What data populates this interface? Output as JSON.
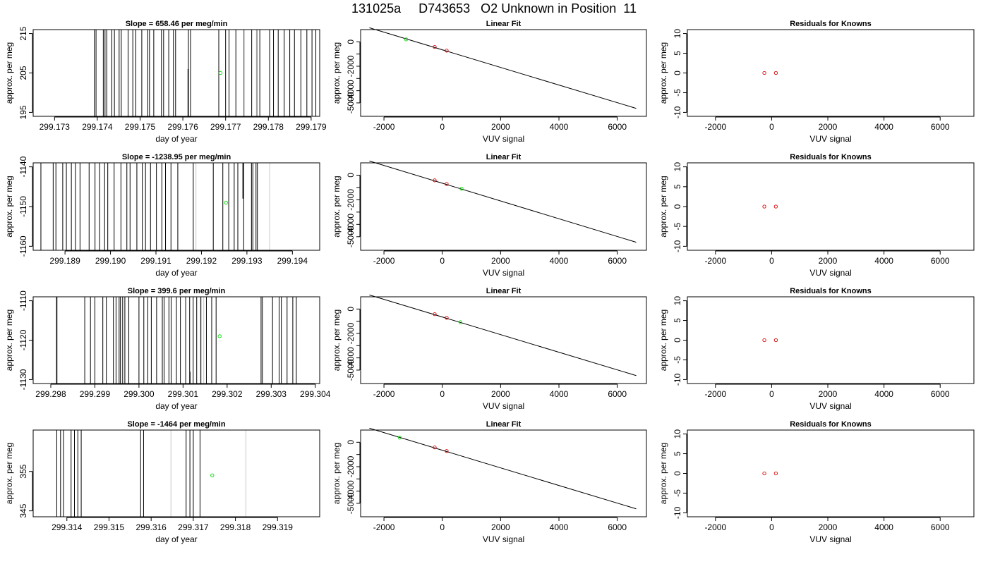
{
  "figure": {
    "title": "131025a     D743653   O2 Unknown in Position  11"
  },
  "colors": {
    "axis": "#000000",
    "trace": "#000000",
    "trace_faint": "#c8c8c8",
    "unknown_point": "#00dd00",
    "known_point": "#dd0000"
  },
  "chart_data": [
    {
      "panel": "row1-time",
      "type": "line",
      "title": "Slope =  658.46  per meg/min",
      "xlabel": "day of year",
      "ylabel": "approx. per meg",
      "xlim": [
        299.1725,
        299.1792
      ],
      "ylim": [
        194,
        216
      ],
      "xticks": [
        299.173,
        299.174,
        299.175,
        299.176,
        299.177,
        299.178,
        299.179
      ],
      "xtick_labels": [
        "299.173",
        "299.174",
        "299.175",
        "299.176",
        "299.177",
        "299.178",
        "299.179"
      ],
      "yticks": [
        195,
        205,
        215
      ],
      "ytick_labels": [
        "195",
        "205",
        "215"
      ],
      "trace_x": [
        299.17393,
        299.17397,
        299.17414,
        299.17418,
        299.17422,
        299.17434,
        299.1744,
        299.17451,
        299.17456,
        299.17472,
        299.17483,
        299.1749,
        299.17504,
        299.17518,
        299.17522,
        299.17532,
        299.1755,
        299.17555,
        299.17567,
        299.17578,
        299.17583,
        299.17613,
        299.17618,
        299.17684,
        299.177,
        299.17708,
        299.17724,
        299.17743,
        299.17761,
        299.17773,
        299.1778,
        299.17803,
        299.17812,
        299.17823,
        299.17837,
        299.1785,
        299.17861,
        299.17876,
        299.1789,
        299.17902,
        299.17911
      ],
      "faint_x": [
        299.17744,
        299.17772
      ],
      "short_x": 299.17612,
      "short_range": [
        194,
        206
      ],
      "unknown_points": [
        {
          "x": 299.17688,
          "y": 205
        }
      ]
    },
    {
      "panel": "row1-fit",
      "type": "scatter",
      "title": "Linear Fit",
      "xlabel": "VUV signal",
      "ylabel": "approx. per meg",
      "xlim": [
        -2800,
        7000
      ],
      "ylim": [
        -6100,
        1000
      ],
      "xticks": [
        -2000,
        0,
        2000,
        4000,
        6000
      ],
      "xtick_labels": [
        "-2000",
        "0",
        "2000",
        "4000",
        "6000"
      ],
      "yticks": [
        0,
        -2000,
        -4000
      ],
      "ytick_labels": [
        "0",
        "-2000",
        "-4000"
      ],
      "ytick_minor": [
        -1000,
        -3000,
        -5000
      ],
      "ytick_minor_labels": [
        "",
        "",
        "-5000"
      ],
      "line": [
        [
          -2500,
          1150
        ],
        [
          6650,
          -5450
        ]
      ],
      "known_points": [
        {
          "x": -260,
          "y": -420
        },
        {
          "x": 150,
          "y": -720
        }
      ],
      "unknown_points": [
        {
          "x": -1240,
          "y": 200
        }
      ]
    },
    {
      "panel": "row1-residuals",
      "type": "scatter",
      "title": "Residuals for Knowns",
      "xlabel": "VUV signal",
      "ylabel": "approx. per meg",
      "xlim": [
        -3000,
        7200
      ],
      "ylim": [
        -11,
        11
      ],
      "xticks": [
        -2000,
        0,
        2000,
        4000,
        6000
      ],
      "xtick_labels": [
        "-2000",
        "0",
        "2000",
        "4000",
        "6000"
      ],
      "yticks": [
        -10,
        -5,
        0,
        5,
        10
      ],
      "ytick_labels": [
        "-10",
        "-5",
        "0",
        "5",
        "10"
      ],
      "known_points": [
        {
          "x": -260,
          "y": 0
        },
        {
          "x": 150,
          "y": 0
        }
      ]
    },
    {
      "panel": "row2-time",
      "type": "line",
      "title": "Slope =  -1238.95  per meg/min",
      "xlabel": "day of year",
      "ylabel": "approx. per meg",
      "xlim": [
        299.1883,
        299.1946
      ],
      "ylim": [
        -1161,
        -1139
      ],
      "xticks": [
        299.189,
        299.19,
        299.191,
        299.192,
        299.193,
        299.194
      ],
      "xtick_labels": [
        "299.189",
        "299.190",
        "299.191",
        "299.192",
        "299.193",
        "299.194"
      ],
      "yticks": [
        -1160,
        -1150,
        -1140
      ],
      "ytick_labels": [
        "-1160",
        "-1150",
        "-1140"
      ],
      "trace_x": [
        299.18847,
        299.18874,
        299.1888,
        299.18895,
        299.18903,
        299.18914,
        299.18923,
        299.18933,
        299.18953,
        299.18966,
        299.18976,
        299.18987,
        299.18994,
        299.19008,
        299.19023,
        299.19036,
        299.19043,
        299.19058,
        299.1907,
        299.19077,
        299.19088,
        299.19101,
        299.19113,
        299.19121,
        299.19133,
        299.19148,
        299.19182,
        299.19226,
        299.19247,
        299.1926,
        299.19272,
        299.1928,
        299.19293,
        299.1931,
        299.19313,
        299.1932,
        299.19323
      ],
      "faint_x": [
        299.19188,
        299.1935
      ],
      "short_x": 299.19291,
      "short_range": [
        -1148,
        -1139
      ],
      "unknown_points": [
        {
          "x": 299.19254,
          "y": -1149
        }
      ]
    },
    {
      "panel": "row2-fit",
      "type": "scatter",
      "title": "Linear Fit",
      "xlabel": "VUV signal",
      "ylabel": "approx. per meg",
      "xlim": [
        -2800,
        7000
      ],
      "ylim": [
        -6100,
        1000
      ],
      "xticks": [
        -2000,
        0,
        2000,
        4000,
        6000
      ],
      "xtick_labels": [
        "-2000",
        "0",
        "2000",
        "4000",
        "6000"
      ],
      "yticks": [
        0,
        -2000,
        -4000
      ],
      "ytick_labels": [
        "0",
        "-2000",
        "-4000"
      ],
      "ytick_minor": [
        -1000,
        -3000,
        -5000
      ],
      "ytick_minor_labels": [
        "",
        "",
        "-5000"
      ],
      "line": [
        [
          -2500,
          1150
        ],
        [
          6650,
          -5450
        ]
      ],
      "known_points": [
        {
          "x": -260,
          "y": -420
        },
        {
          "x": 150,
          "y": -720
        }
      ],
      "unknown_points": [
        {
          "x": 660,
          "y": -1100
        }
      ]
    },
    {
      "panel": "row2-residuals",
      "type": "scatter",
      "title": "Residuals for Knowns",
      "xlabel": "VUV signal",
      "ylabel": "approx. per meg",
      "xlim": [
        -3000,
        7200
      ],
      "ylim": [
        -11,
        11
      ],
      "xticks": [
        -2000,
        0,
        2000,
        4000,
        6000
      ],
      "xtick_labels": [
        "-2000",
        "0",
        "2000",
        "4000",
        "6000"
      ],
      "yticks": [
        -10,
        -5,
        0,
        5,
        10
      ],
      "ytick_labels": [
        "-10",
        "-5",
        "0",
        "5",
        "10"
      ],
      "known_points": [
        {
          "x": -260,
          "y": 0
        },
        {
          "x": 150,
          "y": 0
        }
      ]
    },
    {
      "panel": "row3-time",
      "type": "line",
      "title": "Slope =  399.6  per meg/min",
      "xlabel": "day of year",
      "ylabel": "approx. per meg",
      "xlim": [
        299.2976,
        299.3041
      ],
      "ylim": [
        -1131,
        -1109
      ],
      "xticks": [
        299.298,
        299.299,
        299.3,
        299.301,
        299.302,
        299.303,
        299.304
      ],
      "xtick_labels": [
        "299.298",
        "299.299",
        "299.300",
        "299.301",
        "299.302",
        "299.303",
        "299.304"
      ],
      "yticks": [
        -1130,
        -1120,
        -1110
      ],
      "ytick_labels": [
        "-1130",
        "-1120",
        "-1110"
      ],
      "trace_x": [
        299.29813,
        299.29814,
        299.29877,
        299.2989,
        299.299,
        299.29918,
        299.29926,
        299.29942,
        299.29948,
        299.29955,
        299.29958,
        299.29963,
        299.29968,
        299.29977,
        299.3,
        299.30011,
        299.3002,
        299.30028,
        299.3004,
        299.30053,
        299.30057,
        299.30068,
        299.30073,
        299.30085,
        299.30094,
        299.30106,
        299.30115,
        299.30123,
        299.30131,
        299.3014,
        299.30153,
        299.30165,
        299.30175,
        299.30277,
        299.3028,
        299.30303,
        299.30318,
        299.30323,
        299.30336,
        299.30349,
        299.30357
      ],
      "faint_x": [
        299.30142,
        299.30147
      ],
      "short_x": 299.30116,
      "short_range": [
        -1131,
        -1128
      ],
      "unknown_points": [
        {
          "x": 299.30183,
          "y": -1119
        }
      ]
    },
    {
      "panel": "row3-fit",
      "type": "scatter",
      "title": "Linear Fit",
      "xlabel": "VUV signal",
      "ylabel": "approx. per meg",
      "xlim": [
        -2800,
        7000
      ],
      "ylim": [
        -6100,
        1000
      ],
      "xticks": [
        -2000,
        0,
        2000,
        4000,
        6000
      ],
      "xtick_labels": [
        "-2000",
        "0",
        "2000",
        "4000",
        "6000"
      ],
      "yticks": [
        0,
        -2000,
        -4000
      ],
      "ytick_labels": [
        "0",
        "-2000",
        "-4000"
      ],
      "ytick_minor": [
        -1000,
        -3000,
        -5000
      ],
      "ytick_minor_labels": [
        "",
        "",
        "-5000"
      ],
      "line": [
        [
          -2500,
          1150
        ],
        [
          6650,
          -5450
        ]
      ],
      "known_points": [
        {
          "x": -260,
          "y": -420
        },
        {
          "x": 150,
          "y": -720
        }
      ],
      "unknown_points": [
        {
          "x": 620,
          "y": -1080
        }
      ]
    },
    {
      "panel": "row3-residuals",
      "type": "scatter",
      "title": "Residuals for Knowns",
      "xlabel": "VUV signal",
      "ylabel": "approx. per meg",
      "xlim": [
        -3000,
        7200
      ],
      "ylim": [
        -11,
        11
      ],
      "xticks": [
        -2000,
        0,
        2000,
        4000,
        6000
      ],
      "xtick_labels": [
        "-2000",
        "0",
        "2000",
        "4000",
        "6000"
      ],
      "yticks": [
        -10,
        -5,
        0,
        5,
        10
      ],
      "ytick_labels": [
        "-10",
        "-5",
        "0",
        "5",
        "10"
      ],
      "known_points": [
        {
          "x": -260,
          "y": 0
        },
        {
          "x": 150,
          "y": 0
        }
      ]
    },
    {
      "panel": "row4-time",
      "type": "line",
      "title": "Slope =  -1464  per meg/min",
      "xlabel": "day of year",
      "ylabel": "approx. per meg",
      "xlim": [
        299.3132,
        299.32
      ],
      "ylim": [
        343.5,
        365.5
      ],
      "xticks": [
        299.314,
        299.315,
        299.316,
        299.317,
        299.318,
        299.319
      ],
      "xtick_labels": [
        "299.314",
        "299.315",
        "299.316",
        "299.317",
        "299.318",
        "299.319"
      ],
      "yticks": [
        345,
        355
      ],
      "ytick_labels": [
        "345",
        "355"
      ],
      "trace_x": [
        299.31376,
        299.31385,
        299.31392,
        299.3141,
        299.31418,
        299.31426,
        299.31434,
        299.31575,
        299.31582,
        299.31683,
        299.31692,
        299.317,
        299.31716
      ],
      "faint_x": [
        299.31647,
        299.31825
      ],
      "short_x": null,
      "short_range": [],
      "unknown_points": [
        {
          "x": 299.31745,
          "y": 354
        }
      ]
    },
    {
      "panel": "row4-fit",
      "type": "scatter",
      "title": "Linear Fit",
      "xlabel": "VUV signal",
      "ylabel": "approx. per meg",
      "xlim": [
        -2800,
        7000
      ],
      "ylim": [
        -6100,
        1000
      ],
      "xticks": [
        -2000,
        0,
        2000,
        4000,
        6000
      ],
      "xtick_labels": [
        "-2000",
        "0",
        "2000",
        "4000",
        "6000"
      ],
      "yticks": [
        0,
        -2000,
        -4000
      ],
      "ytick_labels": [
        "0",
        "-2000",
        "-4000"
      ],
      "ytick_minor": [
        -1000,
        -3000,
        -5000
      ],
      "ytick_minor_labels": [
        "",
        "",
        "-5000"
      ],
      "line": [
        [
          -2500,
          1150
        ],
        [
          6650,
          -5450
        ]
      ],
      "known_points": [
        {
          "x": -260,
          "y": -420
        },
        {
          "x": 150,
          "y": -720
        }
      ],
      "unknown_points": [
        {
          "x": -1460,
          "y": 380
        }
      ]
    },
    {
      "panel": "row4-residuals",
      "type": "scatter",
      "title": "Residuals for Knowns",
      "xlabel": "VUV signal",
      "ylabel": "approx. per meg",
      "xlim": [
        -3000,
        7200
      ],
      "ylim": [
        -11,
        11
      ],
      "xticks": [
        -2000,
        0,
        2000,
        4000,
        6000
      ],
      "xtick_labels": [
        "-2000",
        "0",
        "2000",
        "4000",
        "6000"
      ],
      "yticks": [
        -10,
        -5,
        0,
        5,
        10
      ],
      "ytick_labels": [
        "-10",
        "-5",
        "0",
        "5",
        "10"
      ],
      "known_points": [
        {
          "x": -260,
          "y": 0
        },
        {
          "x": 150,
          "y": 0
        }
      ]
    }
  ]
}
